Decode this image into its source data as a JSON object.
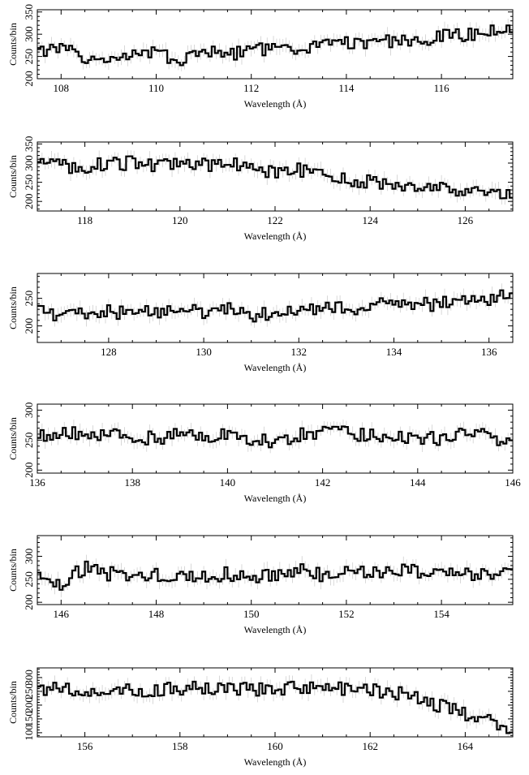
{
  "figure": {
    "panel_ylabel": "Counts/bin",
    "panel_xlabel": "Wavelength (Å)"
  },
  "chart_data": [
    {
      "type": "line",
      "xlabel": "Wavelength (Å)",
      "ylabel": "Counts/bin",
      "xlim": [
        107.5,
        117.5
      ],
      "ylim": [
        200,
        355
      ],
      "xticks": [
        108,
        110,
        112,
        114,
        116
      ],
      "yticks": [
        200,
        250,
        300,
        350
      ],
      "series": [
        {
          "x": [
            107.5,
            108,
            108.5,
            109,
            109.5,
            110,
            110.5,
            111,
            111.5,
            112,
            112.5,
            113,
            113.5,
            114,
            114.5,
            115,
            115.5,
            116,
            116.5,
            117,
            117.5
          ],
          "y": [
            258,
            268,
            245,
            252,
            258,
            256,
            240,
            262,
            255,
            262,
            272,
            265,
            272,
            280,
            278,
            285,
            288,
            295,
            298,
            305,
            312
          ]
        }
      ]
    },
    {
      "type": "line",
      "xlabel": "Wavelength (Å)",
      "ylabel": "Counts/bin",
      "xlim": [
        117,
        127
      ],
      "ylim": [
        175,
        355
      ],
      "xticks": [
        118,
        120,
        122,
        124,
        126
      ],
      "yticks": [
        200,
        250,
        300,
        350
      ],
      "series": [
        {
          "x": [
            117,
            117.5,
            118,
            118.5,
            119,
            119.5,
            120,
            120.5,
            121,
            121.5,
            122,
            122.5,
            123,
            123.5,
            124,
            124.5,
            125,
            125.5,
            126,
            126.5,
            127
          ],
          "y": [
            300,
            292,
            290,
            298,
            300,
            296,
            294,
            296,
            298,
            290,
            275,
            282,
            270,
            258,
            250,
            244,
            236,
            232,
            228,
            226,
            222
          ]
        }
      ]
    },
    {
      "type": "line",
      "xlabel": "Wavelength (Å)",
      "ylabel": "Counts/bin",
      "xlim": [
        126.5,
        136.5
      ],
      "ylim": [
        170,
        295
      ],
      "xticks": [
        128,
        130,
        132,
        134,
        136
      ],
      "yticks": [
        200,
        250
      ],
      "series": [
        {
          "x": [
            126.5,
            127,
            127.5,
            128,
            128.5,
            129,
            129.5,
            130,
            130.5,
            131,
            131.5,
            132,
            132.5,
            133,
            133.5,
            134,
            134.5,
            135,
            135.5,
            136,
            136.5
          ],
          "y": [
            232,
            212,
            225,
            226,
            222,
            226,
            230,
            224,
            232,
            220,
            222,
            232,
            232,
            230,
            236,
            245,
            238,
            240,
            246,
            250,
            255
          ]
        }
      ]
    },
    {
      "type": "line",
      "xlabel": "Wavelength (Å)",
      "ylabel": "Counts/bin",
      "xlim": [
        136,
        146
      ],
      "ylim": [
        195,
        310
      ],
      "xticks": [
        136,
        138,
        140,
        142,
        144,
        146
      ],
      "yticks": [
        200,
        250,
        300
      ],
      "series": [
        {
          "x": [
            136,
            136.5,
            137,
            137.5,
            138,
            138.5,
            139,
            139.5,
            140,
            140.5,
            141,
            141.5,
            142,
            142.5,
            143,
            143.5,
            144,
            144.5,
            145,
            145.5,
            146
          ],
          "y": [
            255,
            262,
            262,
            258,
            256,
            252,
            260,
            256,
            262,
            250,
            248,
            258,
            262,
            262,
            258,
            256,
            254,
            252,
            264,
            256,
            240
          ]
        }
      ]
    },
    {
      "type": "line",
      "xlabel": "Wavelength (Å)",
      "ylabel": "Counts/bin",
      "xlim": [
        145.5,
        155.5
      ],
      "ylim": [
        195,
        345
      ],
      "xticks": [
        146,
        148,
        150,
        152,
        154
      ],
      "yticks": [
        200,
        250,
        300
      ],
      "series": [
        {
          "x": [
            145.5,
            146,
            146.5,
            147,
            147.5,
            148,
            148.5,
            149,
            149.5,
            150,
            150.5,
            151,
            151.5,
            152,
            152.5,
            153,
            153.5,
            154,
            154.5,
            155,
            155.5
          ],
          "y": [
            258,
            242,
            275,
            262,
            262,
            258,
            262,
            252,
            262,
            256,
            262,
            272,
            258,
            265,
            262,
            275,
            268,
            262,
            262,
            262,
            258
          ]
        }
      ]
    },
    {
      "type": "line",
      "xlabel": "Wavelength (Å)",
      "ylabel": "Counts/bin",
      "xlim": [
        155,
        165
      ],
      "ylim": [
        85,
        335
      ],
      "xticks": [
        156,
        158,
        160,
        162,
        164
      ],
      "yticks": [
        100,
        150,
        200,
        250,
        300
      ],
      "series": [
        {
          "x": [
            155,
            155.5,
            156,
            156.5,
            157,
            157.5,
            158,
            158.5,
            159,
            159.5,
            160,
            160.5,
            161,
            161.5,
            162,
            162.5,
            163,
            163.5,
            164,
            164.5,
            165
          ],
          "y": [
            262,
            258,
            256,
            258,
            252,
            255,
            262,
            262,
            265,
            258,
            262,
            260,
            256,
            258,
            255,
            248,
            228,
            195,
            168,
            140,
            118
          ]
        }
      ]
    }
  ]
}
